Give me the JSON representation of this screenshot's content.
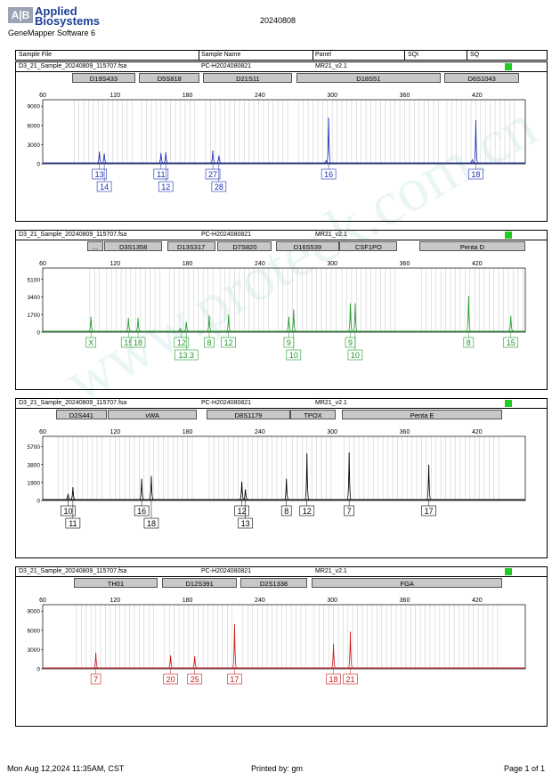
{
  "header": {
    "logo_mark": "A|B",
    "brand_line1": "Applied",
    "brand_line2": "Biosystems",
    "software": "GeneMapper Software 6",
    "date": "20240808"
  },
  "columns": [
    "Sample File",
    "Sample Name",
    "Panel",
    "SQI",
    "SQ"
  ],
  "x_ticks": [
    60,
    120,
    180,
    240,
    300,
    360,
    420
  ],
  "panels": [
    {
      "sample_file": "D3_21_Sample_20240809_115707.fsa",
      "sample_name": "PC-H2024080821",
      "panel": "MR21_v2.1",
      "color": "#1c2fb0",
      "y_ticks": [
        "9000",
        "6000",
        "3000",
        "0"
      ],
      "ymax": 10000,
      "markers": [
        {
          "label": "D19S433",
          "from": 84,
          "to": 137
        },
        {
          "label": "D5S818",
          "from": 140,
          "to": 190
        },
        {
          "label": "D21S11",
          "from": 193,
          "to": 267
        },
        {
          "label": "D18S51",
          "from": 270,
          "to": 390
        },
        {
          "label": "D6S1043",
          "from": 393,
          "to": 455
        }
      ],
      "peaks": [
        {
          "x": 107,
          "h": 1900
        },
        {
          "x": 111,
          "h": 1600
        },
        {
          "x": 158,
          "h": 1700
        },
        {
          "x": 162,
          "h": 1800
        },
        {
          "x": 201,
          "h": 2100
        },
        {
          "x": 206,
          "h": 1300
        },
        {
          "x": 295,
          "h": 500
        },
        {
          "x": 297,
          "h": 7200
        },
        {
          "x": 416,
          "h": 600
        },
        {
          "x": 419,
          "h": 6800
        }
      ],
      "alleles": [
        {
          "label": "13",
          "x": 107,
          "row": 0
        },
        {
          "label": "14",
          "x": 111,
          "row": 1
        },
        {
          "label": "11",
          "x": 158,
          "row": 0
        },
        {
          "label": "12",
          "x": 162,
          "row": 1
        },
        {
          "label": "27",
          "x": 201,
          "row": 0
        },
        {
          "label": "28",
          "x": 206,
          "row": 1
        },
        {
          "label": "16",
          "x": 297,
          "row": 0
        },
        {
          "label": "18",
          "x": 419,
          "row": 0
        }
      ]
    },
    {
      "sample_file": "D3_21_Sample_20240809_115707.fsa",
      "sample_name": "PC-H2024080821",
      "panel": "MR21_v2.1",
      "color": "#1e9a2a",
      "y_ticks": [
        "5100",
        "3400",
        "1700",
        "0"
      ],
      "ymax": 6200,
      "markers": [
        {
          "label": "...",
          "from": 97,
          "to": 110
        },
        {
          "label": "D3S1358",
          "from": 111,
          "to": 159
        },
        {
          "label": "D13S317",
          "from": 163,
          "to": 203
        },
        {
          "label": "D7S820",
          "from": 205,
          "to": 250
        },
        {
          "label": "D16S539",
          "from": 253,
          "to": 306
        },
        {
          "label": "CSF1PO",
          "from": 306,
          "to": 354
        },
        {
          "label": "Penta D",
          "from": 372,
          "to": 460
        }
      ],
      "peaks": [
        {
          "x": 100,
          "h": 1500
        },
        {
          "x": 131,
          "h": 1400
        },
        {
          "x": 139,
          "h": 1400
        },
        {
          "x": 174,
          "h": 350
        },
        {
          "x": 179,
          "h": 1000
        },
        {
          "x": 198,
          "h": 1600
        },
        {
          "x": 214,
          "h": 1700
        },
        {
          "x": 264,
          "h": 1500
        },
        {
          "x": 268,
          "h": 2200
        },
        {
          "x": 315,
          "h": 2800
        },
        {
          "x": 319,
          "h": 2800
        },
        {
          "x": 413,
          "h": 3500
        },
        {
          "x": 448,
          "h": 1600
        }
      ],
      "alleles": [
        {
          "label": "X",
          "x": 100,
          "row": 0
        },
        {
          "label": "15",
          "x": 131,
          "row": 0
        },
        {
          "label": "18",
          "x": 139,
          "row": 0
        },
        {
          "label": "12",
          "x": 175,
          "row": 0
        },
        {
          "label": "13.3",
          "x": 179,
          "row": 1
        },
        {
          "label": "8",
          "x": 198,
          "row": 0
        },
        {
          "label": "12",
          "x": 214,
          "row": 0
        },
        {
          "label": "9",
          "x": 264,
          "row": 0
        },
        {
          "label": "10",
          "x": 268,
          "row": 1
        },
        {
          "label": "9",
          "x": 315,
          "row": 0
        },
        {
          "label": "10",
          "x": 319,
          "row": 1
        },
        {
          "label": "8",
          "x": 413,
          "row": 0
        },
        {
          "label": "15",
          "x": 448,
          "row": 0
        }
      ]
    },
    {
      "sample_file": "D3_21_Sample_20240809_115707.fsa",
      "sample_name": "PC-H2024080821",
      "panel": "MR21_v2.1",
      "color": "#000000",
      "y_ticks": [
        "5700",
        "3800",
        "1900",
        "0"
      ],
      "ymax": 6800,
      "markers": [
        {
          "label": "D2S441",
          "from": 71,
          "to": 113
        },
        {
          "label": "vWA",
          "from": 114,
          "to": 188
        },
        {
          "label": "D8S1179",
          "from": 196,
          "to": 265
        },
        {
          "label": "TPOX",
          "from": 265,
          "to": 303
        },
        {
          "label": "Penta E",
          "from": 308,
          "to": 441
        }
      ],
      "peaks": [
        {
          "x": 81,
          "h": 700
        },
        {
          "x": 85,
          "h": 1400
        },
        {
          "x": 142,
          "h": 2300
        },
        {
          "x": 150,
          "h": 2600
        },
        {
          "x": 225,
          "h": 2000
        },
        {
          "x": 228,
          "h": 1200
        },
        {
          "x": 262,
          "h": 2300
        },
        {
          "x": 279,
          "h": 5000
        },
        {
          "x": 314,
          "h": 5100
        },
        {
          "x": 380,
          "h": 3800
        }
      ],
      "alleles": [
        {
          "label": "10",
          "x": 81,
          "row": 0
        },
        {
          "label": "11",
          "x": 85,
          "row": 1
        },
        {
          "label": "16",
          "x": 142,
          "row": 0
        },
        {
          "label": "18",
          "x": 150,
          "row": 1
        },
        {
          "label": "12",
          "x": 225,
          "row": 0
        },
        {
          "label": "13",
          "x": 228,
          "row": 1
        },
        {
          "label": "8",
          "x": 262,
          "row": 0
        },
        {
          "label": "12",
          "x": 279,
          "row": 0
        },
        {
          "label": "7",
          "x": 314,
          "row": 0
        },
        {
          "label": "17",
          "x": 380,
          "row": 0
        }
      ]
    },
    {
      "sample_file": "D3_21_Sample_20240809_115707.fsa",
      "sample_name": "PC-H2024080821",
      "panel": "MR21_v2.1",
      "color": "#cc1a1a",
      "y_ticks": [
        "9000",
        "6000",
        "3000",
        "0"
      ],
      "ymax": 10000,
      "markers": [
        {
          "label": "TH01",
          "from": 86,
          "to": 155
        },
        {
          "label": "D12S391",
          "from": 159,
          "to": 221
        },
        {
          "label": "D2S1338",
          "from": 224,
          "to": 279
        },
        {
          "label": "FGA",
          "from": 283,
          "to": 441
        }
      ],
      "peaks": [
        {
          "x": 104,
          "h": 2500
        },
        {
          "x": 166,
          "h": 2100
        },
        {
          "x": 186,
          "h": 2000
        },
        {
          "x": 219,
          "h": 7000
        },
        {
          "x": 301,
          "h": 3900
        },
        {
          "x": 315,
          "h": 5800
        }
      ],
      "alleles": [
        {
          "label": "7",
          "x": 104,
          "row": 0
        },
        {
          "label": "20",
          "x": 166,
          "row": 0
        },
        {
          "label": "25",
          "x": 186,
          "row": 0
        },
        {
          "label": "17",
          "x": 219,
          "row": 0
        },
        {
          "label": "18",
          "x": 301,
          "row": 0
        },
        {
          "label": "21",
          "x": 315,
          "row": 0
        }
      ]
    }
  ],
  "footer": {
    "timestamp": "Mon Aug 12,2024 11:35AM, CST",
    "printed_by": "Printed by: gm",
    "page": "Page 1 of 1"
  }
}
